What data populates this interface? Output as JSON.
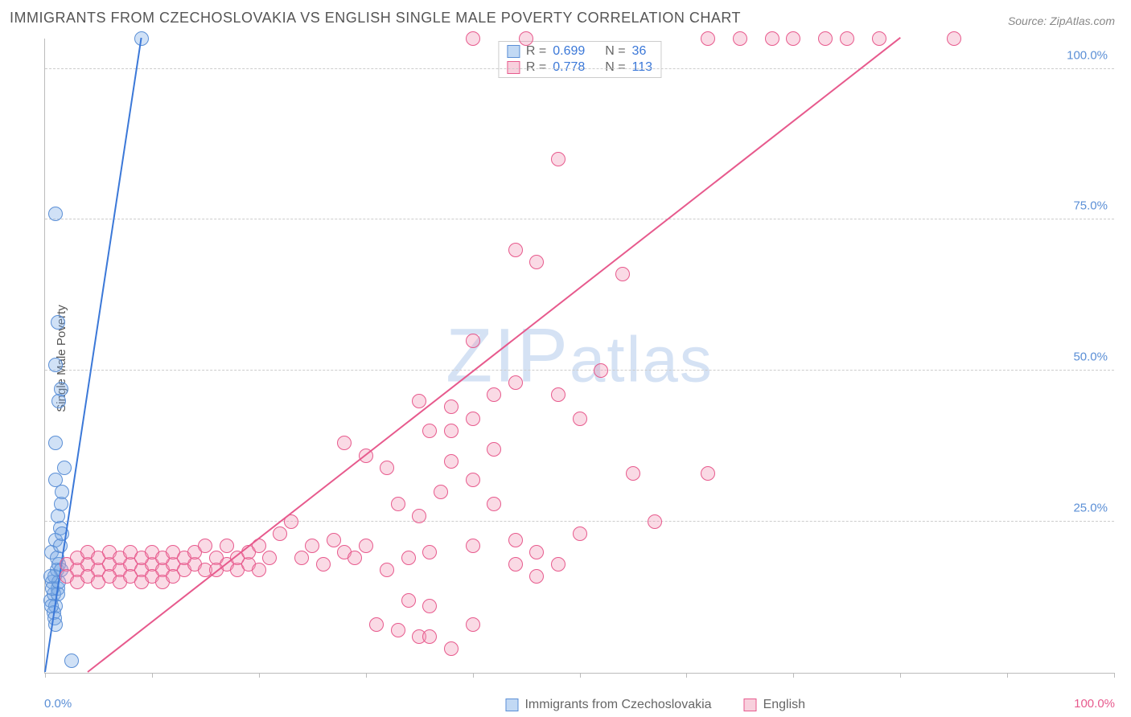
{
  "title": "IMMIGRANTS FROM CZECHOSLOVAKIA VS ENGLISH SINGLE MALE POVERTY CORRELATION CHART",
  "source": "Source: ZipAtlas.com",
  "ylabel": "Single Male Poverty",
  "watermark": "ZIPatlas",
  "chart": {
    "type": "scatter",
    "xlim": [
      0,
      100
    ],
    "ylim": [
      0,
      105
    ],
    "x_ticks": [
      0,
      10,
      20,
      30,
      40,
      50,
      60,
      70,
      80,
      90,
      100
    ],
    "y_gridlines": [
      25,
      50,
      75,
      100
    ],
    "y_tick_labels": [
      "25.0%",
      "50.0%",
      "75.0%",
      "100.0%"
    ],
    "x_label_min": "0.0%",
    "x_label_max": "100.0%",
    "background_color": "#ffffff",
    "grid_color": "#cccccc",
    "series": [
      {
        "name": "Immigrants from Czechoslovakia",
        "id": "a",
        "color_fill": "rgba(120,170,230,0.35)",
        "color_stroke": "#5b8fd6",
        "trend_color": "#3b78d8",
        "r": 0.699,
        "n": 36,
        "marker_size": 18,
        "trendline": {
          "x1": 0,
          "y1": 0,
          "x2": 9,
          "y2": 105
        },
        "points": [
          [
            0.5,
            12
          ],
          [
            0.8,
            13
          ],
          [
            1.0,
            11
          ],
          [
            1.2,
            14
          ],
          [
            0.7,
            15
          ],
          [
            0.9,
            16
          ],
          [
            1.1,
            17
          ],
          [
            1.3,
            18
          ],
          [
            0.6,
            20
          ],
          [
            1.0,
            22
          ],
          [
            1.4,
            24
          ],
          [
            1.2,
            26
          ],
          [
            1.5,
            28
          ],
          [
            1.6,
            30
          ],
          [
            1.0,
            32
          ],
          [
            1.8,
            34
          ],
          [
            1.0,
            38
          ],
          [
            1.3,
            45
          ],
          [
            1.5,
            47
          ],
          [
            1.0,
            51
          ],
          [
            1.2,
            58
          ],
          [
            1.0,
            76
          ],
          [
            2.5,
            2
          ],
          [
            9,
            105
          ],
          [
            0.8,
            10
          ],
          [
            0.9,
            9
          ],
          [
            1.0,
            8
          ],
          [
            1.2,
            13
          ],
          [
            0.7,
            14
          ],
          [
            1.1,
            19
          ],
          [
            1.4,
            21
          ],
          [
            1.6,
            23
          ],
          [
            1.3,
            15
          ],
          [
            1.5,
            17
          ],
          [
            0.6,
            11
          ],
          [
            0.5,
            16
          ]
        ]
      },
      {
        "name": "English",
        "id": "b",
        "color_fill": "rgba(240,150,180,0.35)",
        "color_stroke": "#e75a8d",
        "trend_color": "#e75a8d",
        "r": 0.778,
        "n": 113,
        "marker_size": 18,
        "trendline": {
          "x1": 4,
          "y1": 0,
          "x2": 80,
          "y2": 105
        },
        "points": [
          [
            2,
            18
          ],
          [
            3,
            17
          ],
          [
            4,
            18
          ],
          [
            5,
            17
          ],
          [
            6,
            18
          ],
          [
            7,
            17
          ],
          [
            8,
            18
          ],
          [
            9,
            17
          ],
          [
            10,
            18
          ],
          [
            11,
            17
          ],
          [
            12,
            18
          ],
          [
            13,
            17
          ],
          [
            14,
            18
          ],
          [
            15,
            17
          ],
          [
            16,
            19
          ],
          [
            17,
            18
          ],
          [
            18,
            17
          ],
          [
            19,
            18
          ],
          [
            20,
            17
          ],
          [
            21,
            19
          ],
          [
            22,
            23
          ],
          [
            23,
            25
          ],
          [
            24,
            19
          ],
          [
            25,
            21
          ],
          [
            26,
            18
          ],
          [
            27,
            22
          ],
          [
            28,
            20
          ],
          [
            29,
            19
          ],
          [
            30,
            21
          ],
          [
            31,
            8
          ],
          [
            32,
            17
          ],
          [
            33,
            7
          ],
          [
            34,
            19
          ],
          [
            35,
            6
          ],
          [
            36,
            20
          ],
          [
            34,
            12
          ],
          [
            36,
            11
          ],
          [
            28,
            38
          ],
          [
            30,
            36
          ],
          [
            32,
            34
          ],
          [
            35,
            45
          ],
          [
            37,
            30
          ],
          [
            38,
            40
          ],
          [
            40,
            55
          ],
          [
            42,
            37
          ],
          [
            44,
            70
          ],
          [
            46,
            68
          ],
          [
            48,
            85
          ],
          [
            50,
            42
          ],
          [
            52,
            50
          ],
          [
            54,
            66
          ],
          [
            55,
            33
          ],
          [
            57,
            25
          ],
          [
            62,
            33
          ],
          [
            44,
            22
          ],
          [
            46,
            20
          ],
          [
            48,
            46
          ],
          [
            50,
            23
          ],
          [
            40,
            21
          ],
          [
            42,
            28
          ],
          [
            33,
            28
          ],
          [
            35,
            26
          ],
          [
            62,
            105
          ],
          [
            65,
            105
          ],
          [
            68,
            105
          ],
          [
            70,
            105
          ],
          [
            73,
            105
          ],
          [
            75,
            105
          ],
          [
            78,
            105
          ],
          [
            85,
            105
          ],
          [
            45,
            105
          ],
          [
            40,
            105
          ],
          [
            38,
            4
          ],
          [
            40,
            8
          ],
          [
            36,
            6
          ],
          [
            3,
            19
          ],
          [
            4,
            20
          ],
          [
            5,
            19
          ],
          [
            6,
            20
          ],
          [
            7,
            19
          ],
          [
            8,
            20
          ],
          [
            9,
            19
          ],
          [
            10,
            20
          ],
          [
            11,
            19
          ],
          [
            12,
            20
          ],
          [
            13,
            19
          ],
          [
            14,
            20
          ],
          [
            15,
            21
          ],
          [
            16,
            17
          ],
          [
            17,
            21
          ],
          [
            18,
            19
          ],
          [
            19,
            20
          ],
          [
            20,
            21
          ],
          [
            2,
            16
          ],
          [
            3,
            15
          ],
          [
            4,
            16
          ],
          [
            5,
            15
          ],
          [
            6,
            16
          ],
          [
            7,
            15
          ],
          [
            8,
            16
          ],
          [
            9,
            15
          ],
          [
            10,
            16
          ],
          [
            11,
            15
          ],
          [
            12,
            16
          ],
          [
            44,
            18
          ],
          [
            46,
            16
          ],
          [
            48,
            18
          ],
          [
            36,
            40
          ],
          [
            38,
            35
          ],
          [
            40,
            32
          ],
          [
            42,
            46
          ],
          [
            44,
            48
          ],
          [
            40,
            42
          ],
          [
            38,
            44
          ]
        ]
      }
    ]
  },
  "legend_bottom": [
    {
      "swatch": "a",
      "label": "Immigrants from Czechoslovakia"
    },
    {
      "swatch": "b",
      "label": "English"
    }
  ]
}
